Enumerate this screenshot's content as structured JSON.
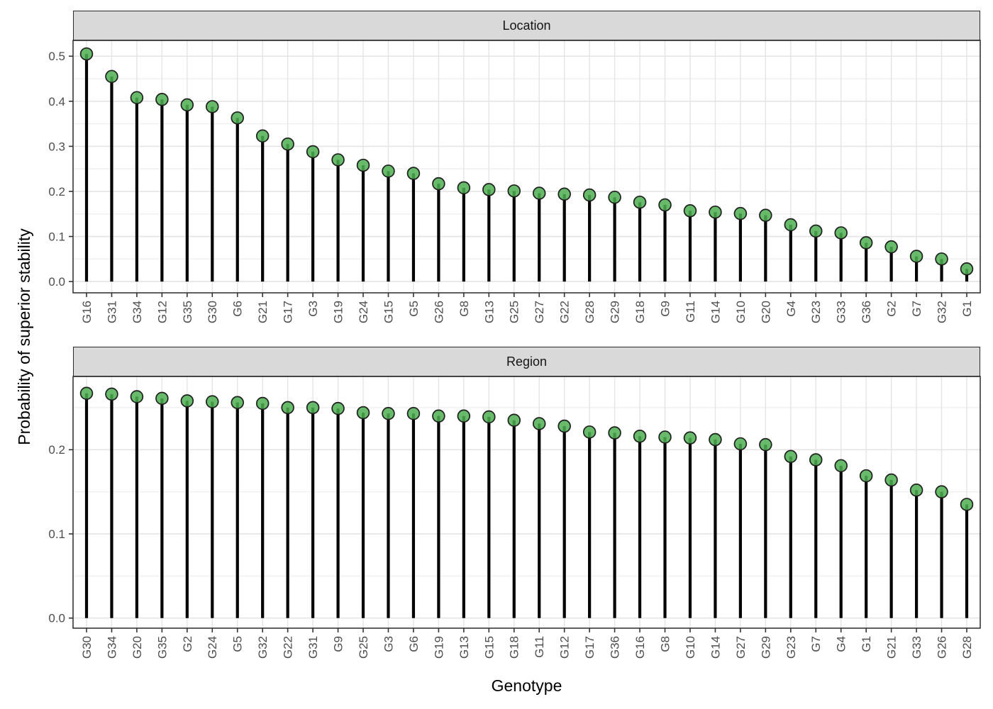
{
  "figure": {
    "y_axis_title": "Probability of superior stability",
    "x_axis_title": "Genotype"
  },
  "chart_data": [
    {
      "type": "lollipop",
      "facet_label": "Location",
      "xlabel": "Genotype",
      "ylabel": "Probability of superior stability",
      "ylim": [
        -0.025,
        0.535
      ],
      "ytick_labels": [
        "0.0",
        "0.1",
        "0.2",
        "0.3",
        "0.4",
        "0.5"
      ],
      "ytick_values": [
        0.0,
        0.1,
        0.2,
        0.3,
        0.4,
        0.5
      ],
      "minor_tick_values": [
        0.05,
        0.15,
        0.25,
        0.35,
        0.45
      ],
      "grid": true,
      "legend": "none",
      "categories": [
        "G16",
        "G31",
        "G34",
        "G12",
        "G35",
        "G30",
        "G6",
        "G21",
        "G17",
        "G3",
        "G19",
        "G24",
        "G15",
        "G5",
        "G26",
        "G8",
        "G13",
        "G25",
        "G27",
        "G22",
        "G28",
        "G29",
        "G18",
        "G9",
        "G11",
        "G14",
        "G10",
        "G20",
        "G4",
        "G23",
        "G33",
        "G36",
        "G2",
        "G7",
        "G32",
        "G1"
      ],
      "values": [
        0.505,
        0.455,
        0.408,
        0.404,
        0.392,
        0.388,
        0.363,
        0.323,
        0.305,
        0.288,
        0.27,
        0.258,
        0.245,
        0.24,
        0.217,
        0.208,
        0.204,
        0.201,
        0.196,
        0.194,
        0.192,
        0.187,
        0.176,
        0.17,
        0.157,
        0.154,
        0.151,
        0.147,
        0.126,
        0.112,
        0.108,
        0.086,
        0.077,
        0.056,
        0.05,
        0.028
      ]
    },
    {
      "type": "lollipop",
      "facet_label": "Region",
      "xlabel": "Genotype",
      "ylabel": "Probability of superior stability",
      "ylim": [
        -0.012,
        0.287
      ],
      "ytick_labels": [
        "0.0",
        "0.1",
        "0.2"
      ],
      "ytick_values": [
        0.0,
        0.1,
        0.2
      ],
      "minor_tick_values": [
        0.05,
        0.15,
        0.25
      ],
      "grid": true,
      "legend": "none",
      "categories": [
        "G30",
        "G34",
        "G20",
        "G35",
        "G2",
        "G24",
        "G5",
        "G32",
        "G22",
        "G31",
        "G9",
        "G25",
        "G3",
        "G6",
        "G19",
        "G13",
        "G15",
        "G18",
        "G11",
        "G12",
        "G17",
        "G36",
        "G16",
        "G8",
        "G10",
        "G14",
        "G27",
        "G29",
        "G23",
        "G7",
        "G4",
        "G1",
        "G21",
        "G33",
        "G26",
        "G28"
      ],
      "values": [
        0.267,
        0.266,
        0.263,
        0.261,
        0.258,
        0.257,
        0.256,
        0.255,
        0.25,
        0.25,
        0.249,
        0.244,
        0.243,
        0.243,
        0.24,
        0.24,
        0.239,
        0.235,
        0.231,
        0.228,
        0.221,
        0.22,
        0.216,
        0.215,
        0.214,
        0.212,
        0.207,
        0.206,
        0.192,
        0.188,
        0.181,
        0.169,
        0.164,
        0.152,
        0.15,
        0.135
      ]
    }
  ],
  "style": {
    "point_fill": "#4CAF50",
    "point_fill_opacity": "0.85",
    "point_stroke": "#1f1f1f",
    "stem_color": "#000000",
    "strip_bg": "#d9d9d9",
    "panel_border": "#2a2a2a",
    "grid_major": "#e4e4e4",
    "grid_minor": "#efefef",
    "tick_color": "#333333",
    "tick_label_color": "#4d4d4d",
    "axis_title_color": "#000000"
  }
}
